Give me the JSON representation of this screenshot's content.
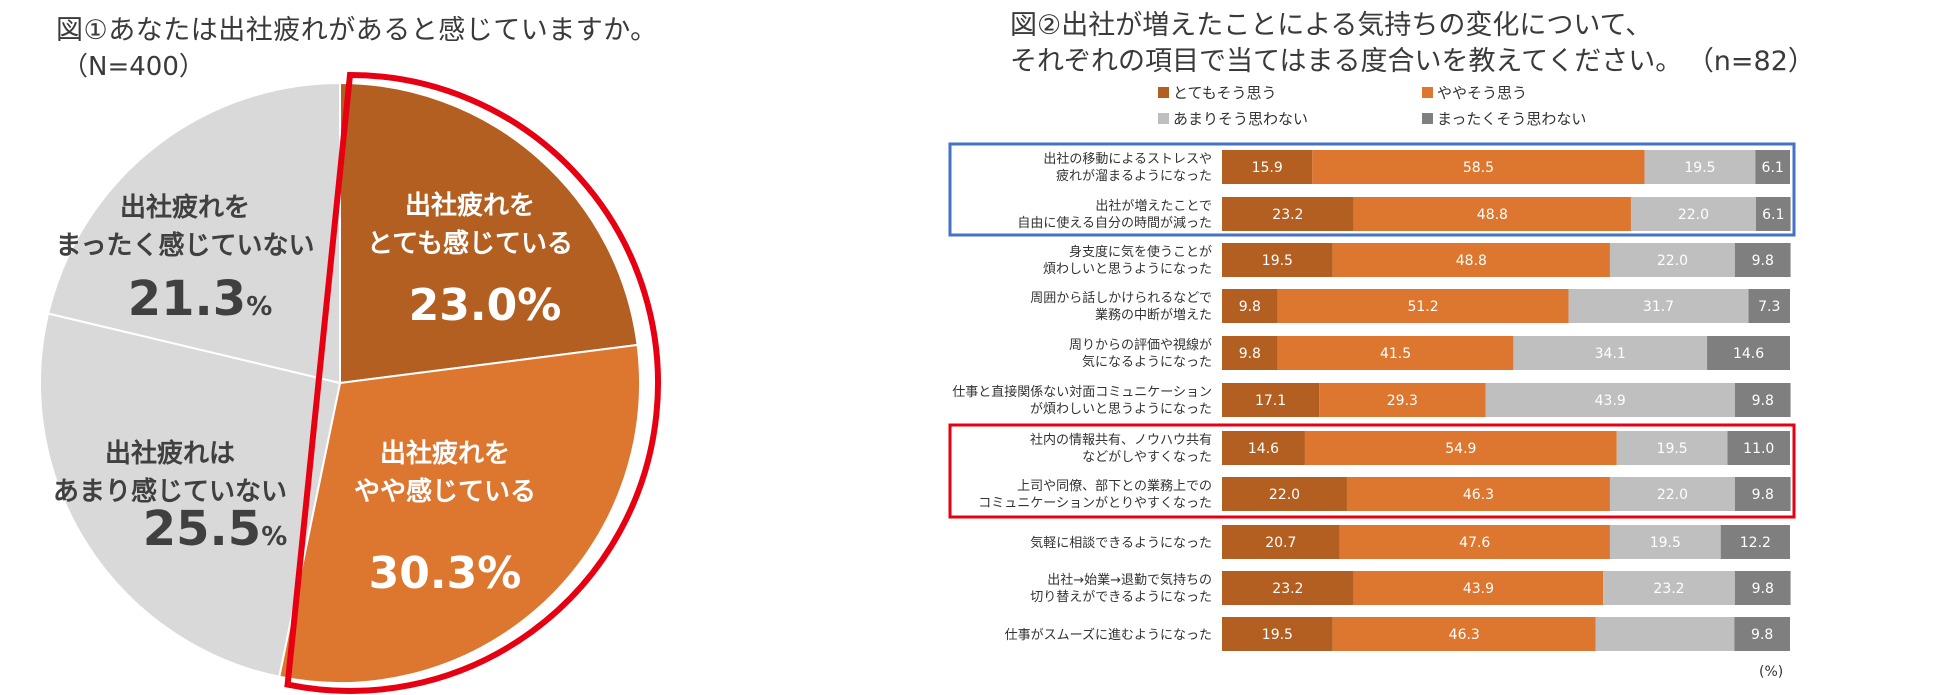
{
  "figure1": {
    "title": "図①あなたは出社疲れがあると感じていますか。",
    "sample": "（N=400）"
  },
  "figure2": {
    "title_line1": "図②出社が増えたことによる気持ちの変化について、",
    "title_line2": "それぞれの項目で当てはまる度合いを教えてください。",
    "sample": "（n=82）",
    "unit": "(%)"
  },
  "colors": {
    "very": "#B35F22",
    "somewhat": "#DD762F",
    "not_much": "#BFBFBF",
    "not_at_all": "#7F7F7F",
    "pie_grey": "#D9D9D9",
    "highlight_red": "#E60012",
    "highlight_blue": "#4472C4"
  },
  "chart_data": [
    {
      "type": "pie",
      "title": "図①あなたは出社疲れがあると感じていますか。",
      "slices": [
        {
          "label_line1": "出社疲れを",
          "label_line2": "とても感じている",
          "value": 23.0,
          "value_text": "23.0%",
          "color": "#B35F22"
        },
        {
          "label_line1": "出社疲れを",
          "label_line2": "やや感じている",
          "value": 30.3,
          "value_text": "30.3%",
          "color": "#DD762F"
        },
        {
          "label_line1": "出社疲れは",
          "label_line2": "あまり感じていない",
          "value": 25.5,
          "value_text": "25.5",
          "color": "#D9D9D9"
        },
        {
          "label_line1": "出社疲れを",
          "label_line2": "まったく感じていない",
          "value": 21.3,
          "value_text": "21.3",
          "color": "#D9D9D9"
        }
      ],
      "percent_sign": "%"
    },
    {
      "type": "bar",
      "orientation": "horizontal",
      "stacked": true,
      "title": "図②出社が増えたことによる気持ちの変化について、それぞれの項目で当てはまる度合いを教えてください。",
      "xlim": [
        0,
        100
      ],
      "legend": [
        {
          "name": "とてもそう思う",
          "color": "#B35F22"
        },
        {
          "name": "ややそう思う",
          "color": "#DD762F"
        },
        {
          "name": "あまりそう思わない",
          "color": "#BFBFBF"
        },
        {
          "name": "まったくそう思わない",
          "color": "#7F7F7F"
        }
      ],
      "categories": [
        [
          "出社の移動によるストレスや",
          "疲れが溜まるようになった"
        ],
        [
          "出社が増えたことで",
          "自由に使える自分の時間が減った"
        ],
        [
          "身支度に気を使うことが",
          "煩わしいと思うようになった"
        ],
        [
          "周囲から話しかけられるなどで",
          "業務の中断が増えた"
        ],
        [
          "周りからの評価や視線が",
          "気になるようになった"
        ],
        [
          "仕事と直接関係ない対面コミュニケーション",
          "が煩わしいと思うようになった"
        ],
        [
          "社内の情報共有、ノウハウ共有",
          "などがしやすくなった"
        ],
        [
          "上司や同僚、部下との業務上での",
          "コミュニケーションがとりやすくなった"
        ],
        [
          "気軽に相談できるようになった"
        ],
        [
          "出社→始業→退勤で気持ちの",
          "切り替えができるようになった"
        ],
        [
          "仕事がスムーズに進むようになった"
        ]
      ],
      "series": [
        {
          "name": "とてもそう思う",
          "values": [
            15.9,
            23.2,
            19.5,
            9.8,
            9.8,
            17.1,
            14.6,
            22.0,
            20.7,
            23.2,
            19.5
          ]
        },
        {
          "name": "ややそう思う",
          "values": [
            58.5,
            48.8,
            48.8,
            51.2,
            41.5,
            29.3,
            54.9,
            46.3,
            47.6,
            43.9,
            46.3
          ]
        },
        {
          "name": "あまりそう思わない",
          "values": [
            19.5,
            22.0,
            22.0,
            31.7,
            34.1,
            43.9,
            19.5,
            22.0,
            19.5,
            23.2,
            24.4
          ]
        },
        {
          "name": "まったくそう思わない",
          "values": [
            6.1,
            6.1,
            9.8,
            7.3,
            14.6,
            9.8,
            11.0,
            9.8,
            12.2,
            9.8,
            9.8
          ]
        }
      ],
      "labels": [
        [
          "15.9",
          "58.5",
          "19.5",
          "6.1"
        ],
        [
          "23.2",
          "48.8",
          "22.0",
          "6.1"
        ],
        [
          "19.5",
          "48.8",
          "22.0",
          "9.8"
        ],
        [
          "9.8",
          "51.2",
          "31.7",
          "7.3"
        ],
        [
          "9.8",
          "41.5",
          "34.1",
          "14.6"
        ],
        [
          "17.1",
          "29.3",
          "43.9",
          "9.8"
        ],
        [
          "14.6",
          "54.9",
          "19.5",
          "11.0"
        ],
        [
          "22.0",
          "46.3",
          "22.0",
          "9.8"
        ],
        [
          "20.7",
          "47.6",
          "19.5",
          "12.2"
        ],
        [
          "23.2",
          "43.9",
          "23.2",
          "9.8"
        ],
        [
          "19.5",
          "46.3",
          "",
          "9.8"
        ]
      ],
      "highlight_groups": [
        {
          "color": "blue",
          "rows": [
            0,
            1
          ]
        },
        {
          "color": "red",
          "rows": [
            6,
            7
          ]
        }
      ]
    }
  ]
}
